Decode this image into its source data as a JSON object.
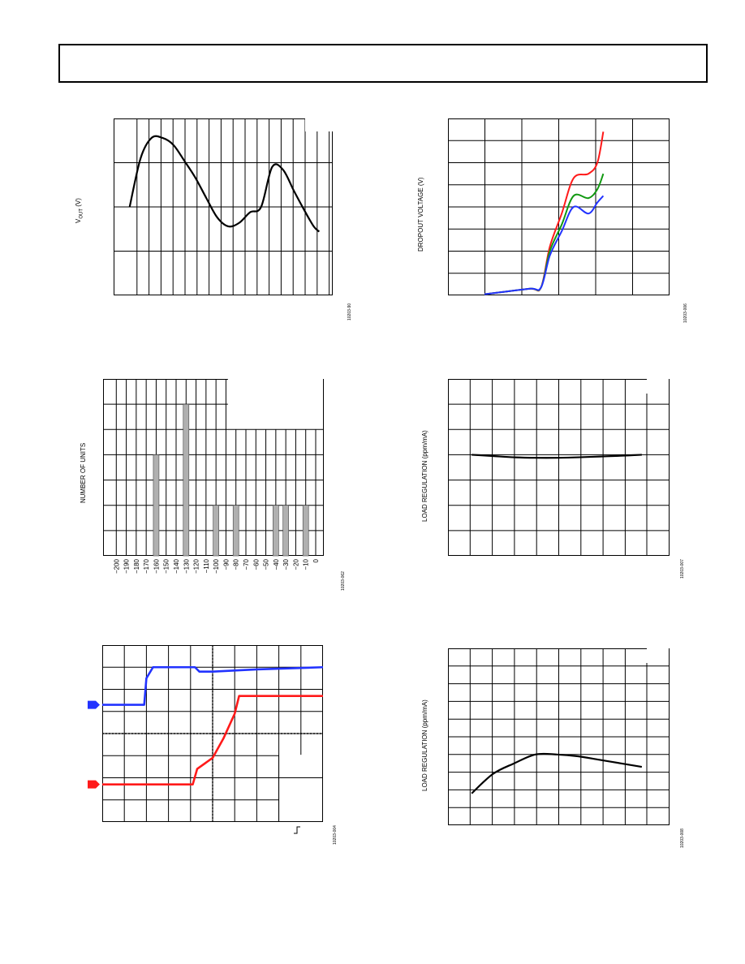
{
  "page": {
    "colors": {
      "blue": "#2233ff",
      "red": "#ff1a1a",
      "green": "#119911",
      "black": "#000000",
      "bar": "#b0b0b0"
    }
  },
  "chart_data": [
    {
      "id": "vout",
      "type": "line",
      "ylabel": "VOUT (V)",
      "ylabel_main": "V",
      "ylabel_sub": "OUT",
      "ylabel_tail": " (V)",
      "fig_id": "10203-90",
      "x": [
        0,
        1,
        2,
        3,
        4,
        5,
        6,
        7,
        8,
        9,
        10,
        11,
        12,
        13,
        14,
        15,
        16,
        17,
        18
      ],
      "series": [
        {
          "values": [
            0.0,
            0.58,
            0.8,
            0.8,
            0.7,
            0.52,
            0.33,
            0.1,
            -0.12,
            -0.2,
            -0.17,
            -0.05,
            0.45,
            0.15,
            -0.3,
            -0.1,
            -0.1,
            -0.1,
            -0.1
          ]
        }
      ],
      "x_plot": [
        0.5,
        1.5,
        2.5,
        3.5,
        4.5,
        5.5,
        6.5,
        7.5,
        8.5,
        9.5,
        10.5,
        11.5,
        12.5,
        13.5,
        14.5,
        15.5,
        16.5,
        17.3,
        17.8
      ],
      "y_plot": [
        0.0,
        0.55,
        0.78,
        0.78,
        0.7,
        0.52,
        0.33,
        0.1,
        -0.12,
        -0.22,
        -0.18,
        -0.06,
        0.0,
        0.45,
        0.42,
        0.18,
        -0.05,
        -0.22,
        -0.28
      ],
      "ylim": [
        -1.0,
        1.0
      ],
      "xlim": [
        0,
        18
      ],
      "grid": true
    },
    {
      "id": "dropout",
      "type": "line",
      "ylabel": "DROPOUT VOLTAGE (V)",
      "fig_id": "10203-006",
      "xlim": [
        0,
        5
      ],
      "ylim": [
        0,
        8
      ],
      "grid": true,
      "series": [
        {
          "color": "red",
          "x": [
            0.0,
            1.5,
            1.9,
            2.2,
            2.6,
            3.0,
            3.5,
            3.8,
            4.0
          ],
          "y": [
            0.05,
            0.3,
            0.35,
            2.2,
            3.7,
            5.3,
            5.5,
            6.0,
            7.4
          ]
        },
        {
          "color": "green",
          "x": [
            0.0,
            1.5,
            1.9,
            2.2,
            2.6,
            3.0,
            3.5,
            3.8,
            4.0
          ],
          "y": [
            0.05,
            0.3,
            0.35,
            2.0,
            3.2,
            4.5,
            4.4,
            4.8,
            5.5
          ]
        },
        {
          "color": "blue",
          "x": [
            0.0,
            1.5,
            1.9,
            2.2,
            2.6,
            3.0,
            3.5,
            3.8,
            4.0
          ],
          "y": [
            0.05,
            0.3,
            0.35,
            1.8,
            2.9,
            4.0,
            3.7,
            4.2,
            4.5
          ]
        }
      ]
    },
    {
      "id": "histogram",
      "type": "bar",
      "ylabel": "NUMBER OF UNITS",
      "fig_id": "10203-062",
      "categories": [
        "-200",
        "-190",
        "-180",
        "-170",
        "-160",
        "-150",
        "-140",
        "-130",
        "-120",
        "-110",
        "-100",
        "-90",
        "-80",
        "-70",
        "-60",
        "-50",
        "-40",
        "-30",
        "-20",
        "-10",
        "0"
      ],
      "category_values": [
        -200,
        -190,
        -180,
        -170,
        -160,
        -150,
        -140,
        -130,
        -120,
        -110,
        -100,
        -90,
        -80,
        -70,
        -60,
        -50,
        -40,
        -30,
        -20,
        -10,
        0
      ],
      "bars": [
        {
          "x": -160,
          "value": 4
        },
        {
          "x": -130,
          "value": 6
        },
        {
          "x": -100,
          "value": 2
        },
        {
          "x": -80,
          "value": 2
        },
        {
          "x": -40,
          "value": 2
        },
        {
          "x": -30,
          "value": 2
        },
        {
          "x": -10,
          "value": 2
        }
      ],
      "ylim": [
        0,
        7
      ],
      "grid": true
    },
    {
      "id": "loadreg1",
      "type": "line",
      "ylabel": "LOAD REGULATION (ppm/mA)",
      "fig_id": "10203-007",
      "xlim": [
        0,
        10
      ],
      "ylim": [
        -4,
        3
      ],
      "grid": true,
      "series": [
        {
          "x": [
            1,
            2,
            3,
            4,
            5,
            6,
            7,
            8,
            9
          ],
          "y": [
            0.0,
            -0.05,
            -0.1,
            -0.12,
            -0.12,
            -0.1,
            -0.07,
            -0.04,
            0.0
          ]
        }
      ]
    },
    {
      "id": "transient",
      "type": "line",
      "fig_id": "10203-004",
      "xlim": [
        0,
        10
      ],
      "ylim": [
        0,
        8
      ],
      "grid": true,
      "series": [
        {
          "color": "blue",
          "x": [
            0,
            1.9,
            2.0,
            2.3,
            4.2,
            4.4,
            5.0,
            7.0,
            10.0
          ],
          "y": [
            5.3,
            5.3,
            6.5,
            7.0,
            7.0,
            6.8,
            6.8,
            6.9,
            7.0
          ]
        },
        {
          "color": "red",
          "x": [
            0,
            4.1,
            4.3,
            5.0,
            5.5,
            6.0,
            6.2,
            8.0,
            10.0
          ],
          "y": [
            1.7,
            1.7,
            2.4,
            2.9,
            3.8,
            4.9,
            5.7,
            5.7,
            5.7
          ]
        }
      ]
    },
    {
      "id": "loadreg2",
      "type": "line",
      "ylabel": "LOAD REGULATION (ppm/mA)",
      "fig_id": "10203-008",
      "xlim": [
        0,
        10
      ],
      "ylim": [
        -5,
        5
      ],
      "grid": true,
      "series": [
        {
          "x": [
            1,
            2,
            3,
            4,
            5,
            6,
            7,
            8,
            9
          ],
          "y": [
            -3.2,
            -2.1,
            -1.5,
            -1.0,
            -1.0,
            -1.1,
            -1.3,
            -1.5,
            -1.7
          ]
        }
      ]
    }
  ]
}
